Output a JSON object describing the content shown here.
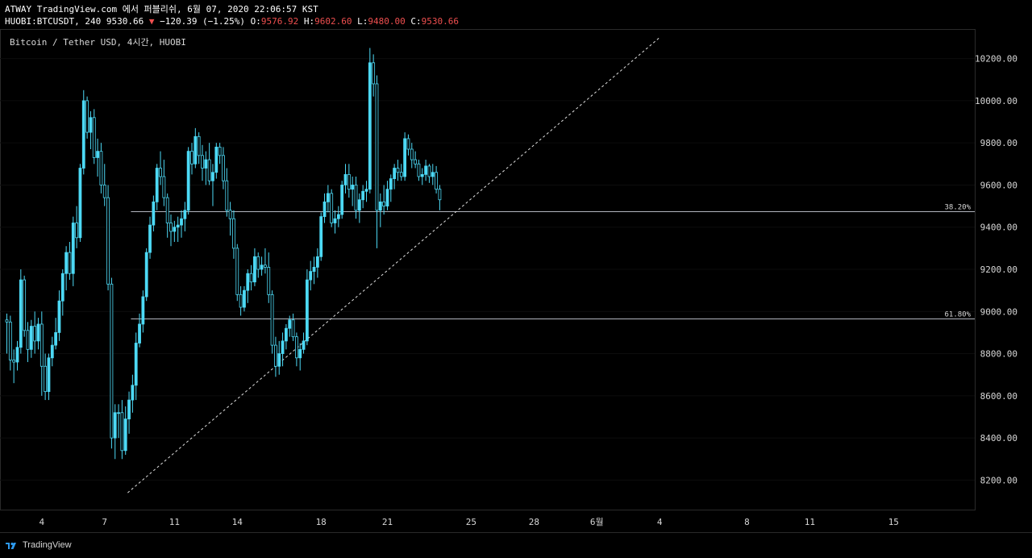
{
  "header": {
    "line1": "ATWAY TradingView.com 에서 퍼블리쉬, 6월 07, 2020 22:06:57 KST",
    "symbol": "HUOBI:BTCUSDT, 240",
    "price": "9530.66",
    "change_arrow": "▼",
    "change": "−120.39 (−1.25%)",
    "o_label": "O:",
    "o_value": "9576.92",
    "h_label": "H:",
    "h_value": "9602.60",
    "l_label": "L:",
    "l_value": "9480.00",
    "c_label": "C:",
    "c_value": "9530.66"
  },
  "footer": {
    "brand": "TradingView"
  },
  "colors": {
    "background": "#000000",
    "candle": "#4dd9f5",
    "grid": "#2a2a2a",
    "fib": "#b2b5be",
    "accent_red": "#ef4f4f"
  },
  "chart_data": {
    "type": "candlestick",
    "title": "Bitcoin / Tether USD, 4시간, HUOBI",
    "ylim": [
      8120,
      10300
    ],
    "y_ticks": [
      "8200.00",
      "8400.00",
      "8600.00",
      "8800.00",
      "9000.00",
      "9200.00",
      "9400.00",
      "9600.00",
      "9800.00",
      "10000.00",
      "10200.00"
    ],
    "x_ticks": [
      {
        "label": "4",
        "bar": 10
      },
      {
        "label": "7",
        "bar": 28
      },
      {
        "label": "11",
        "bar": 48
      },
      {
        "label": "14",
        "bar": 66
      },
      {
        "label": "18",
        "bar": 90
      },
      {
        "label": "21",
        "bar": 109
      },
      {
        "label": "25",
        "bar": 133
      },
      {
        "label": "28",
        "bar": 151
      },
      {
        "label": "6월",
        "bar": 169
      },
      {
        "label": "4",
        "bar": 187
      },
      {
        "label": "8",
        "bar": 212
      },
      {
        "label": "11",
        "bar": 230
      },
      {
        "label": "15",
        "bar": 254
      }
    ],
    "fib_levels": [
      {
        "label": "38.20%",
        "value": 9475,
        "from_bar": 36
      },
      {
        "label": "61.80%",
        "value": 8965,
        "from_bar": 36
      }
    ],
    "trend_line": {
      "from": {
        "bar": 36,
        "value": 8140
      },
      "to": {
        "bar": 187,
        "value": 10300
      }
    },
    "ohlc": [
      [
        8960,
        8990,
        8800,
        8950
      ],
      [
        8950,
        8980,
        8720,
        8770
      ],
      [
        8770,
        8820,
        8660,
        8760
      ],
      [
        8760,
        8860,
        8720,
        8830
      ],
      [
        8830,
        9200,
        8800,
        9150
      ],
      [
        9150,
        9170,
        8880,
        8910
      ],
      [
        8910,
        8950,
        8760,
        8820
      ],
      [
        8820,
        8960,
        8780,
        8930
      ],
      [
        8930,
        9000,
        8800,
        8860
      ],
      [
        8860,
        8970,
        8820,
        8940
      ],
      [
        8940,
        9000,
        8600,
        8740
      ],
      [
        8740,
        8800,
        8580,
        8620
      ],
      [
        8620,
        8800,
        8580,
        8780
      ],
      [
        8780,
        8880,
        8740,
        8840
      ],
      [
        8840,
        8970,
        8820,
        8900
      ],
      [
        8900,
        9100,
        8860,
        9050
      ],
      [
        9050,
        9200,
        8980,
        9180
      ],
      [
        9180,
        9310,
        9100,
        9280
      ],
      [
        9280,
        9330,
        9150,
        9180
      ],
      [
        9180,
        9450,
        9120,
        9420
      ],
      [
        9420,
        9500,
        9300,
        9350
      ],
      [
        9350,
        9700,
        9330,
        9680
      ],
      [
        9680,
        10050,
        9650,
        10000
      ],
      [
        10000,
        10020,
        9820,
        9850
      ],
      [
        9850,
        9950,
        9770,
        9920
      ],
      [
        9920,
        9960,
        9700,
        9730
      ],
      [
        9730,
        9820,
        9640,
        9760
      ],
      [
        9760,
        9800,
        9560,
        9600
      ],
      [
        9600,
        9700,
        9500,
        9540
      ],
      [
        9540,
        9600,
        9100,
        9130
      ],
      [
        9130,
        9160,
        8350,
        8400
      ],
      [
        8400,
        8560,
        8300,
        8520
      ],
      [
        8520,
        8560,
        8400,
        8520
      ],
      [
        8520,
        8580,
        8300,
        8340
      ],
      [
        8340,
        8550,
        8320,
        8490
      ],
      [
        8490,
        8620,
        8420,
        8580
      ],
      [
        8580,
        8700,
        8520,
        8650
      ],
      [
        8650,
        8900,
        8580,
        8850
      ],
      [
        8850,
        8990,
        8830,
        8940
      ],
      [
        8940,
        9100,
        8900,
        9070
      ],
      [
        9070,
        9300,
        9050,
        9280
      ],
      [
        9280,
        9450,
        9250,
        9410
      ],
      [
        9410,
        9550,
        9380,
        9520
      ],
      [
        9520,
        9700,
        9480,
        9680
      ],
      [
        9680,
        9760,
        9600,
        9640
      ],
      [
        9640,
        9720,
        9500,
        9540
      ],
      [
        9540,
        9560,
        9350,
        9420
      ],
      [
        9420,
        9460,
        9310,
        9380
      ],
      [
        9380,
        9430,
        9330,
        9400
      ],
      [
        9400,
        9450,
        9330,
        9410
      ],
      [
        9410,
        9480,
        9350,
        9440
      ],
      [
        9440,
        9520,
        9380,
        9480
      ],
      [
        9480,
        9780,
        9460,
        9760
      ],
      [
        9760,
        9800,
        9650,
        9700
      ],
      [
        9700,
        9870,
        9680,
        9830
      ],
      [
        9830,
        9850,
        9700,
        9740
      ],
      [
        9740,
        9790,
        9620,
        9680
      ],
      [
        9680,
        9760,
        9600,
        9720
      ],
      [
        9720,
        9800,
        9600,
        9620
      ],
      [
        9620,
        9700,
        9500,
        9660
      ],
      [
        9660,
        9800,
        9630,
        9780
      ],
      [
        9780,
        9800,
        9700,
        9740
      ],
      [
        9740,
        9780,
        9580,
        9620
      ],
      [
        9620,
        9680,
        9450,
        9480
      ],
      [
        9480,
        9520,
        9360,
        9440
      ],
      [
        9440,
        9480,
        9250,
        9300
      ],
      [
        9300,
        9320,
        9050,
        9080
      ],
      [
        9080,
        9120,
        8980,
        9020
      ],
      [
        9020,
        9120,
        9000,
        9100
      ],
      [
        9100,
        9200,
        9040,
        9180
      ],
      [
        9180,
        9220,
        9100,
        9140
      ],
      [
        9140,
        9300,
        9120,
        9260
      ],
      [
        9260,
        9280,
        9160,
        9200
      ],
      [
        9200,
        9260,
        9170,
        9220
      ],
      [
        9220,
        9300,
        9180,
        9210
      ],
      [
        9210,
        9280,
        9040,
        9080
      ],
      [
        9080,
        9100,
        8800,
        8840
      ],
      [
        8840,
        8880,
        8690,
        8740
      ],
      [
        8740,
        8860,
        8700,
        8800
      ],
      [
        8800,
        8900,
        8740,
        8860
      ],
      [
        8860,
        8940,
        8820,
        8920
      ],
      [
        8920,
        8980,
        8880,
        8960
      ],
      [
        8960,
        8990,
        8860,
        8880
      ],
      [
        8880,
        8900,
        8740,
        8780
      ],
      [
        8780,
        8850,
        8720,
        8820
      ],
      [
        8820,
        8900,
        8800,
        8860
      ],
      [
        8860,
        9200,
        8840,
        9150
      ],
      [
        9150,
        9240,
        9100,
        9190
      ],
      [
        9190,
        9260,
        9130,
        9210
      ],
      [
        9210,
        9300,
        9160,
        9260
      ],
      [
        9260,
        9470,
        9240,
        9450
      ],
      [
        9450,
        9560,
        9420,
        9520
      ],
      [
        9520,
        9600,
        9470,
        9560
      ],
      [
        9560,
        9580,
        9400,
        9420
      ],
      [
        9420,
        9480,
        9370,
        9440
      ],
      [
        9440,
        9500,
        9400,
        9460
      ],
      [
        9460,
        9620,
        9440,
        9600
      ],
      [
        9600,
        9700,
        9560,
        9650
      ],
      [
        9650,
        9700,
        9540,
        9580
      ],
      [
        9580,
        9640,
        9500,
        9600
      ],
      [
        9600,
        9640,
        9440,
        9480
      ],
      [
        9480,
        9560,
        9420,
        9530
      ],
      [
        9530,
        9600,
        9490,
        9570
      ],
      [
        9570,
        9620,
        9520,
        9580
      ],
      [
        9580,
        10250,
        9560,
        10180
      ],
      [
        10180,
        10220,
        10020,
        10080
      ],
      [
        10080,
        10120,
        9300,
        9480
      ],
      [
        9480,
        9560,
        9400,
        9520
      ],
      [
        9520,
        9600,
        9460,
        9500
      ],
      [
        9500,
        9620,
        9480,
        9580
      ],
      [
        9580,
        9650,
        9520,
        9630
      ],
      [
        9630,
        9700,
        9580,
        9680
      ],
      [
        9680,
        9720,
        9620,
        9660
      ],
      [
        9660,
        9700,
        9620,
        9640
      ],
      [
        9640,
        9850,
        9620,
        9820
      ],
      [
        9820,
        9840,
        9740,
        9770
      ],
      [
        9770,
        9800,
        9680,
        9720
      ],
      [
        9720,
        9760,
        9680,
        9700
      ],
      [
        9700,
        9720,
        9620,
        9640
      ],
      [
        9640,
        9680,
        9600,
        9650
      ],
      [
        9650,
        9720,
        9620,
        9690
      ],
      [
        9690,
        9700,
        9610,
        9640
      ],
      [
        9640,
        9700,
        9600,
        9660
      ],
      [
        9660,
        9690,
        9560,
        9580
      ],
      [
        9580,
        9600,
        9480,
        9530
      ]
    ]
  }
}
